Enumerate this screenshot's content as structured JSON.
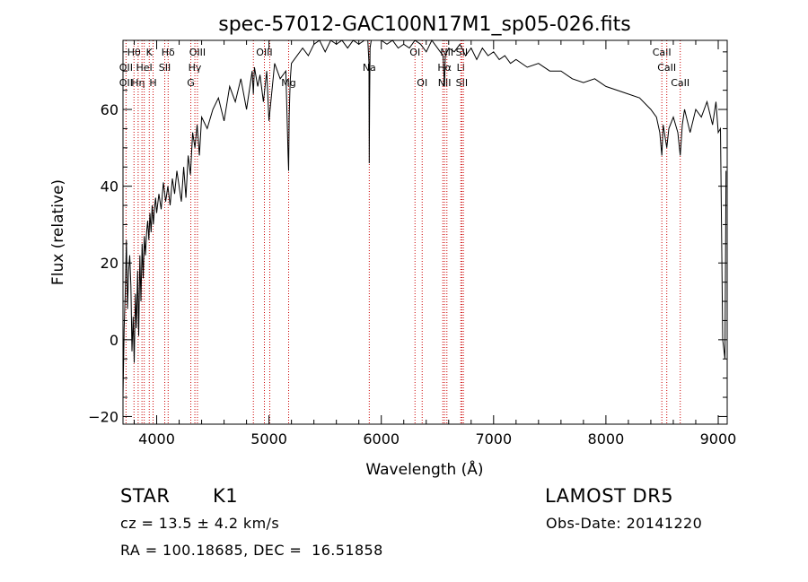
{
  "chart_data": {
    "type": "line",
    "title": "spec-57012-GAC100N17M1_sp05-026.fits",
    "xlabel": "Wavelength (Å)",
    "ylabel": "Flux (relative)",
    "xlim": [
      3700,
      9080
    ],
    "ylim": [
      -22,
      78
    ],
    "x_ticks": [
      4000,
      5000,
      6000,
      7000,
      8000,
      9000
    ],
    "y_ticks": [
      -20,
      0,
      20,
      40,
      60
    ],
    "grid": false,
    "line_color": "#000000",
    "marker_color": "#cc0000",
    "series": [
      {
        "x": [
          3700,
          3710,
          3720,
          3730,
          3740,
          3750,
          3760,
          3770,
          3780,
          3790,
          3800,
          3810,
          3820,
          3830,
          3840,
          3850,
          3860,
          3870,
          3880,
          3890,
          3900,
          3910,
          3920,
          3930,
          3940,
          3950,
          3960,
          3970,
          3980,
          3990,
          4000,
          4020,
          4040,
          4060,
          4080,
          4100,
          4120,
          4140,
          4160,
          4180,
          4200,
          4220,
          4240,
          4260,
          4280,
          4300,
          4320,
          4340,
          4360,
          4380,
          4400,
          4450,
          4500,
          4550,
          4600,
          4650,
          4700,
          4750,
          4800,
          4850,
          4861,
          4870,
          4900,
          4920,
          4950,
          4980,
          5000,
          5050,
          5100,
          5150,
          5170,
          5175,
          5180,
          5185,
          5190,
          5200,
          5250,
          5300,
          5350,
          5400,
          5450,
          5500,
          5550,
          5600,
          5650,
          5700,
          5750,
          5800,
          5850,
          5880,
          5890,
          5893,
          5896,
          5900,
          5910,
          5950,
          6000,
          6050,
          6100,
          6150,
          6200,
          6250,
          6300,
          6350,
          6400,
          6450,
          6500,
          6550,
          6563,
          6570,
          6600,
          6650,
          6700,
          6750,
          6800,
          6850,
          6900,
          6950,
          7000,
          7050,
          7100,
          7150,
          7200,
          7300,
          7400,
          7500,
          7600,
          7700,
          7800,
          7900,
          8000,
          8100,
          8200,
          8300,
          8400,
          8450,
          8480,
          8498,
          8510,
          8542,
          8560,
          8600,
          8640,
          8662,
          8680,
          8700,
          8750,
          8800,
          8850,
          8900,
          8950,
          8980,
          9000,
          9020,
          9040,
          9060,
          9070
        ],
        "y": [
          -15,
          3,
          12,
          26,
          8,
          18,
          22,
          14,
          -3,
          6,
          -6,
          12,
          3,
          18,
          1,
          22,
          10,
          25,
          16,
          27,
          22,
          28,
          31,
          26,
          33,
          28,
          35,
          30,
          34,
          37,
          33,
          38,
          34,
          41,
          36,
          40,
          35,
          42,
          38,
          44,
          40,
          36,
          45,
          37,
          48,
          43,
          54,
          50,
          56,
          48,
          58,
          55,
          60,
          63,
          57,
          66,
          62,
          68,
          60,
          70,
          64,
          71,
          66,
          69,
          62,
          70,
          57,
          72,
          68,
          70,
          48,
          44,
          58,
          64,
          68,
          72,
          74,
          76,
          74,
          77,
          78,
          75,
          79,
          77,
          78,
          76,
          79,
          77,
          80,
          78,
          72,
          46,
          62,
          76,
          80,
          78,
          79,
          77,
          78,
          76,
          77,
          76,
          78,
          77,
          75,
          78,
          76,
          74,
          66,
          74,
          76,
          75,
          77,
          74,
          76,
          73,
          76,
          74,
          75,
          73,
          74,
          72,
          73,
          71,
          72,
          70,
          70,
          68,
          67,
          68,
          66,
          65,
          64,
          63,
          60,
          58,
          54,
          48,
          56,
          50,
          55,
          58,
          54,
          48,
          56,
          60,
          54,
          60,
          58,
          62,
          56,
          62,
          54,
          55,
          0,
          -5,
          44
        ],
        "name": ""
      }
    ],
    "lines": [
      {
        "x": 3727,
        "top": "",
        "mid": "OII",
        "low": "OII"
      },
      {
        "x": 3798,
        "top": "Hθ",
        "mid": "",
        "low": ""
      },
      {
        "x": 3835,
        "top": "",
        "mid": "",
        "low": "Hη"
      },
      {
        "x": 3869,
        "top": "",
        "mid": "",
        "low": ""
      },
      {
        "x": 3889,
        "top": "",
        "mid": "HeI",
        "low": ""
      },
      {
        "x": 3934,
        "top": "K",
        "mid": "",
        "low": ""
      },
      {
        "x": 3968,
        "top": "",
        "mid": "",
        "low": "H"
      },
      {
        "x": 4072,
        "top": "",
        "mid": "SII",
        "low": ""
      },
      {
        "x": 4102,
        "top": "Hδ",
        "mid": "",
        "low": ""
      },
      {
        "x": 4304,
        "top": "",
        "mid": "",
        "low": "G"
      },
      {
        "x": 4340,
        "top": "",
        "mid": "Hγ",
        "low": ""
      },
      {
        "x": 4363,
        "top": "OIII",
        "mid": "",
        "low": ""
      },
      {
        "x": 4861,
        "top": "",
        "mid": "",
        "low": ""
      },
      {
        "x": 4959,
        "top": "OIII",
        "mid": "",
        "low": ""
      },
      {
        "x": 5007,
        "top": "",
        "mid": "",
        "low": ""
      },
      {
        "x": 5175,
        "top": "",
        "mid": "",
        "low": "Mg"
      },
      {
        "x": 5893,
        "top": "",
        "mid": "Na",
        "low": ""
      },
      {
        "x": 6300,
        "top": "OI",
        "mid": "",
        "low": ""
      },
      {
        "x": 6364,
        "top": "",
        "mid": "",
        "low": "OI"
      },
      {
        "x": 6548,
        "top": "",
        "mid": "",
        "low": ""
      },
      {
        "x": 6563,
        "top": "",
        "mid": "Hα",
        "low": "NII"
      },
      {
        "x": 6584,
        "top": "NII",
        "mid": "",
        "low": ""
      },
      {
        "x": 6708,
        "top": "",
        "mid": "Li",
        "low": ""
      },
      {
        "x": 6717,
        "top": "SII",
        "mid": "",
        "low": "SII"
      },
      {
        "x": 6731,
        "top": "",
        "mid": "",
        "low": ""
      },
      {
        "x": 8498,
        "top": "CaII",
        "mid": "",
        "low": ""
      },
      {
        "x": 8542,
        "top": "",
        "mid": "CaII",
        "low": ""
      },
      {
        "x": 8662,
        "top": "",
        "mid": "",
        "low": "CaII"
      }
    ]
  },
  "info": {
    "object_type": "STAR",
    "subclass": "K1",
    "survey": "LAMOST DR5",
    "cz": "cz = 13.5 ± 4.2 km/s",
    "obs_date": "Obs-Date: 20141220",
    "radec": "RA = 100.18685, DEC =  16.51858"
  }
}
